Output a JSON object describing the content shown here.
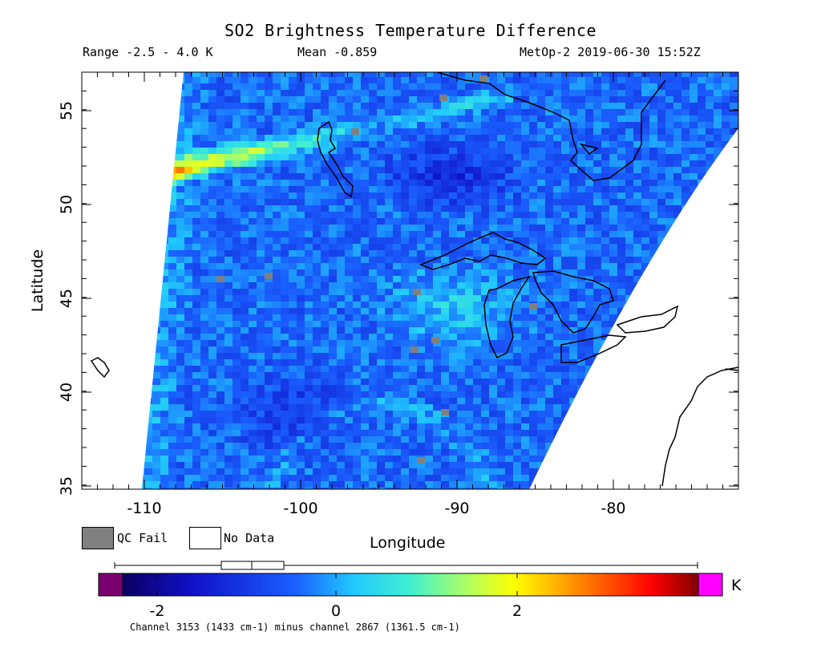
{
  "header": {
    "title": "SO2 Brightness Temperature Difference",
    "range": "Range -2.5 - 4.0 K",
    "mean": "Mean -0.859",
    "satellite": "MetOp-2 2019-06-30 15:52Z"
  },
  "axes": {
    "xlabel": "Longitude",
    "ylabel": "Latitude",
    "x_ticks": [
      "-110",
      "-100",
      "-90",
      "-80"
    ],
    "y_ticks": [
      "35",
      "40",
      "45",
      "50",
      "55"
    ]
  },
  "legend": {
    "qc_fail": "QC Fail",
    "no_data": "No Data",
    "qc_color": "#808080"
  },
  "colorbar": {
    "ticks": [
      "-2",
      "0",
      "2"
    ],
    "unit": "K",
    "caption": "Channel 3153 (1433 cm-1) minus channel 2867 (1361.5 cm-1)",
    "under_color": "#7a0070",
    "over_color": "#ff00ff",
    "range": [
      -2.5,
      4.0
    ]
  },
  "map_data": {
    "lon_range": [
      -114,
      -72
    ],
    "lat_range": [
      34.8,
      57
    ],
    "mean_value": -0.859,
    "box_stats": {
      "whisker_low": -2.5,
      "q1": -1.3,
      "median": -0.9,
      "q3": -0.6,
      "whisker_high": 4.0
    }
  }
}
